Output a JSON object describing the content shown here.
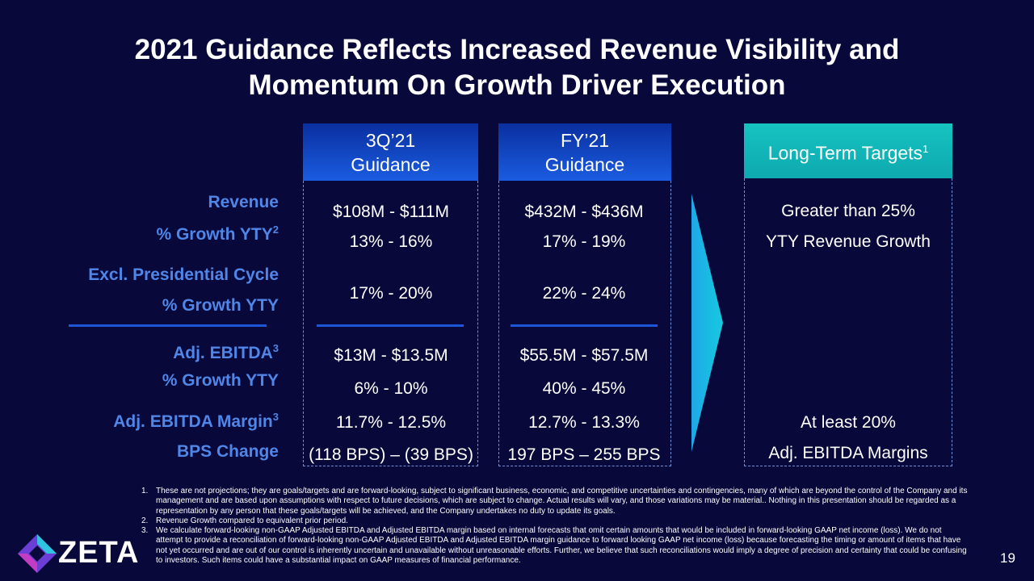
{
  "title": [
    "2021 Guidance Reflects Increased Revenue Visibility and",
    "Momentum On Growth Driver Execution"
  ],
  "columns": [
    {
      "header": [
        "3Q’21",
        "Guidance"
      ],
      "values": [
        "$108M - $111M",
        "13% - 16%",
        "17% - 20%",
        "$13M - $13.5M",
        "6% - 10%",
        "11.7% - 12.5%",
        "(118 BPS) – (39 BPS)"
      ]
    },
    {
      "header": [
        "FY’21",
        "Guidance"
      ],
      "values": [
        "$432M - $436M",
        "17% - 19%",
        "22% - 24%",
        "$55.5M - $57.5M",
        "40% - 45%",
        "12.7% - 13.3%",
        "197 BPS – 255 BPS"
      ]
    }
  ],
  "long_term": {
    "header": "Long-Term Targets",
    "sup": "1",
    "values": [
      "Greater than 25%",
      "YTY Revenue Growth",
      "At least 20%",
      "Adj. EBITDA Margins"
    ]
  },
  "row_labels": [
    {
      "text": "Revenue"
    },
    {
      "text": "% Growth YTY",
      "sup": "2"
    },
    {
      "text": "Excl. Presidential Cycle"
    },
    {
      "text": "% Growth YTY"
    },
    {
      "text": "Adj. EBITDA",
      "sup": "3"
    },
    {
      "text": "% Growth YTY"
    },
    {
      "text": "Adj. EBITDA Margin",
      "sup": "3"
    },
    {
      "text": "BPS Change"
    }
  ],
  "footnotes": [
    {
      "marker": "1.",
      "text": "These are not projections; they are goals/targets and are forward-looking, subject to significant business, economic, and competitive uncertainties and contingencies, many of which are beyond the control of the Company and its management and are based upon assumptions with respect to future decisions, which are subject to change. Actual results will vary, and those variations may be material.. Nothing in this presentation should be regarded as a representation by any person that these goals/targets will be achieved, and the Company undertakes no duty to update its goals."
    },
    {
      "marker": "2.",
      "text": "Revenue Growth compared to equivalent prior period."
    },
    {
      "marker": "3.",
      "text": "We calculate forward-looking non-GAAP Adjusted EBITDA and Adjusted EBITDA margin based on internal forecasts that omit certain amounts that would be included in forward-looking GAAP net income (loss). We do not attempt to provide a reconciliation of forward-looking non-GAAP Adjusted EBITDA and Adjusted EBITDA margin guidance to forward looking GAAP net income (loss) because forecasting the timing or amount of items that have not yet occurred and are out of our control is inherently uncertain and unavailable without unreasonable efforts. Further, we believe that such reconciliations would imply a degree of precision and certainty that could be confusing to investors. Such items could have a substantial impact on GAAP measures of financial performance."
    }
  ],
  "logo": "ZETA",
  "page_number": "19"
}
